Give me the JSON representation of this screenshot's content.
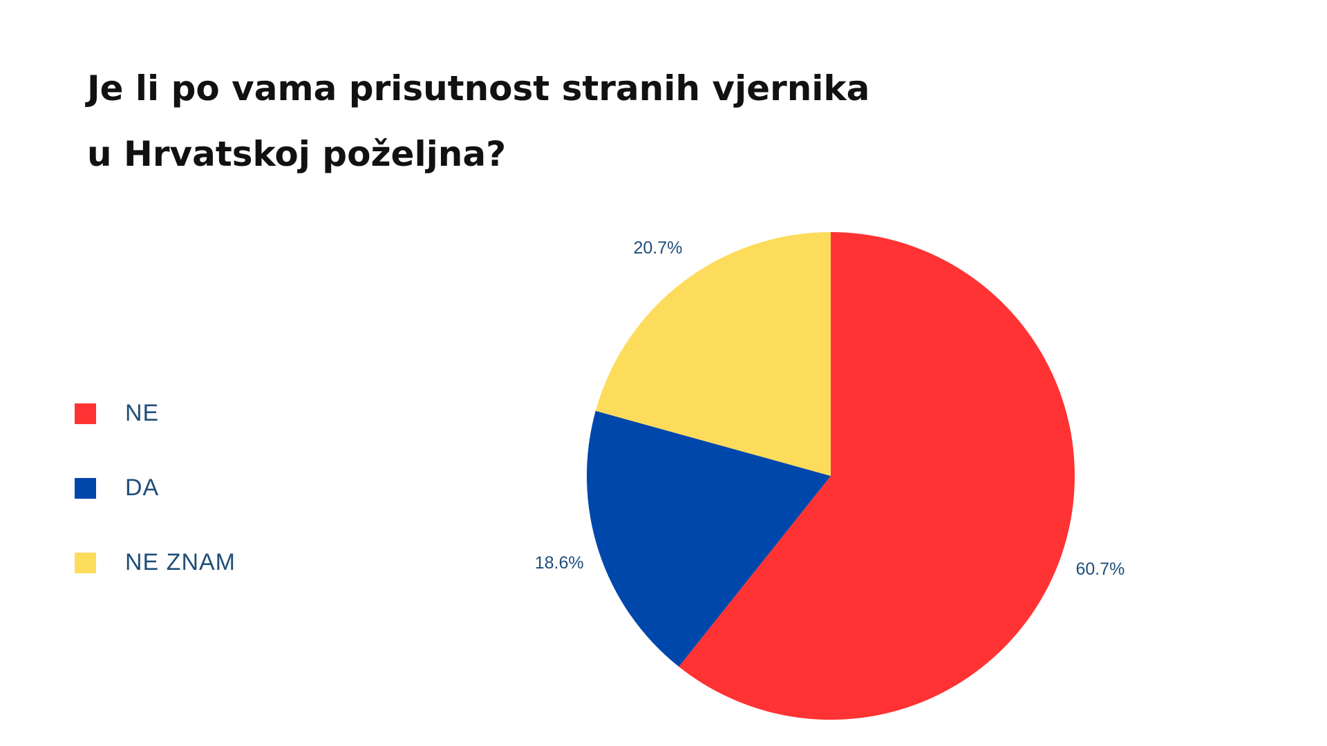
{
  "chart_data": {
    "type": "pie",
    "title": [
      "Je li po vama prisutnost stranih vjernika",
      "u Hrvatskoj poželjna?"
    ],
    "categories": [
      "NE",
      "DA",
      "NE ZNAM"
    ],
    "values": [
      60.7,
      18.6,
      20.7
    ],
    "value_labels": [
      "60.7%",
      "18.6%",
      "20.7%"
    ],
    "colors": [
      "#ff3333",
      "#0047ab",
      "#fddc5c"
    ],
    "legend": "left"
  }
}
